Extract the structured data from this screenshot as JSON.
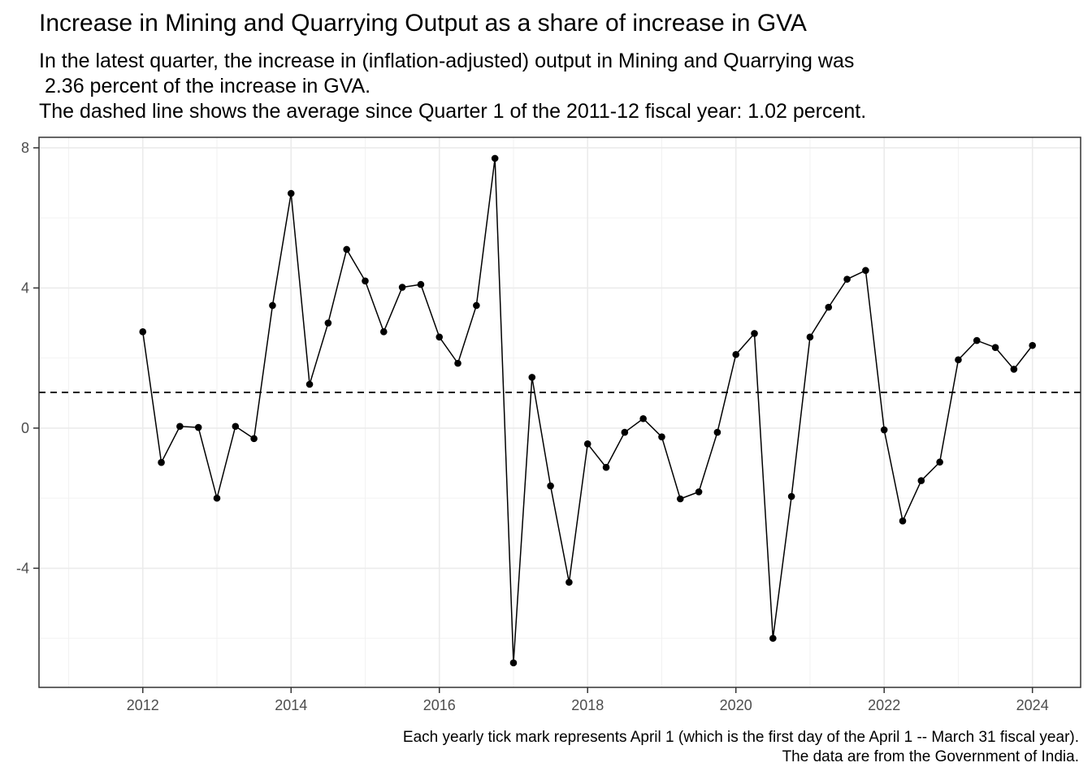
{
  "title": "Increase in Mining and Quarrying Output as a share of increase in GVA",
  "subtitle_lines": [
    "In the latest quarter, the increase in (inflation-adjusted) output in Mining and Quarrying was",
    " 2.36 percent of the increase in GVA.",
    "The dashed line shows the average since Quarter 1 of the 2011-12 fiscal year: 1.02 percent."
  ],
  "caption_lines": [
    "Each yearly tick mark represents April 1 (which is the first day of the April 1 -- March 31 fiscal year).",
    "The data are from the Government of India."
  ],
  "chart_data": {
    "type": "line",
    "x_axis": {
      "unit": "fiscal year start (April 1)",
      "range": [
        2010.6,
        2024.65
      ],
      "ticks": [
        2012,
        2014,
        2016,
        2018,
        2020,
        2022,
        2024
      ]
    },
    "y_axis": {
      "range": [
        -7.4,
        8.3
      ],
      "ticks": [
        -4,
        0,
        4,
        8
      ]
    },
    "grid": true,
    "reference_line": {
      "value": 1.02,
      "style": "dashed"
    },
    "series": [
      {
        "x": [
          2012,
          2012.25,
          2012.5,
          2012.75,
          2013,
          2013.25,
          2013.5,
          2013.75,
          2014,
          2014.25,
          2014.5,
          2014.75,
          2015,
          2015.25,
          2015.5,
          2015.75,
          2016,
          2016.25,
          2016.5,
          2016.75,
          2017,
          2017.25,
          2017.5,
          2017.75,
          2018,
          2018.25,
          2018.5,
          2018.75,
          2019,
          2019.25,
          2019.5,
          2019.75,
          2020,
          2020.25,
          2020.5,
          2020.75,
          2021,
          2021.25,
          2021.5,
          2021.75,
          2022,
          2022.25,
          2022.5,
          2022.75,
          2023,
          2023.25,
          2023.5,
          2023.75,
          2024
        ],
        "values": [
          2.75,
          -0.98,
          0.05,
          0.02,
          -2.0,
          0.05,
          -0.3,
          3.5,
          6.7,
          1.25,
          3.0,
          5.1,
          4.2,
          2.75,
          4.02,
          4.1,
          2.6,
          1.85,
          3.5,
          7.7,
          -6.7,
          1.45,
          -1.65,
          -4.4,
          -0.45,
          -1.12,
          -0.12,
          0.27,
          -0.25,
          -2.02,
          -1.82,
          -0.12,
          2.1,
          2.7,
          -6.0,
          -1.95,
          2.6,
          3.45,
          4.25,
          4.5,
          -0.05,
          -2.65,
          -1.5,
          -0.97,
          1.95,
          2.5,
          2.3,
          1.68,
          2.36
        ]
      }
    ]
  }
}
